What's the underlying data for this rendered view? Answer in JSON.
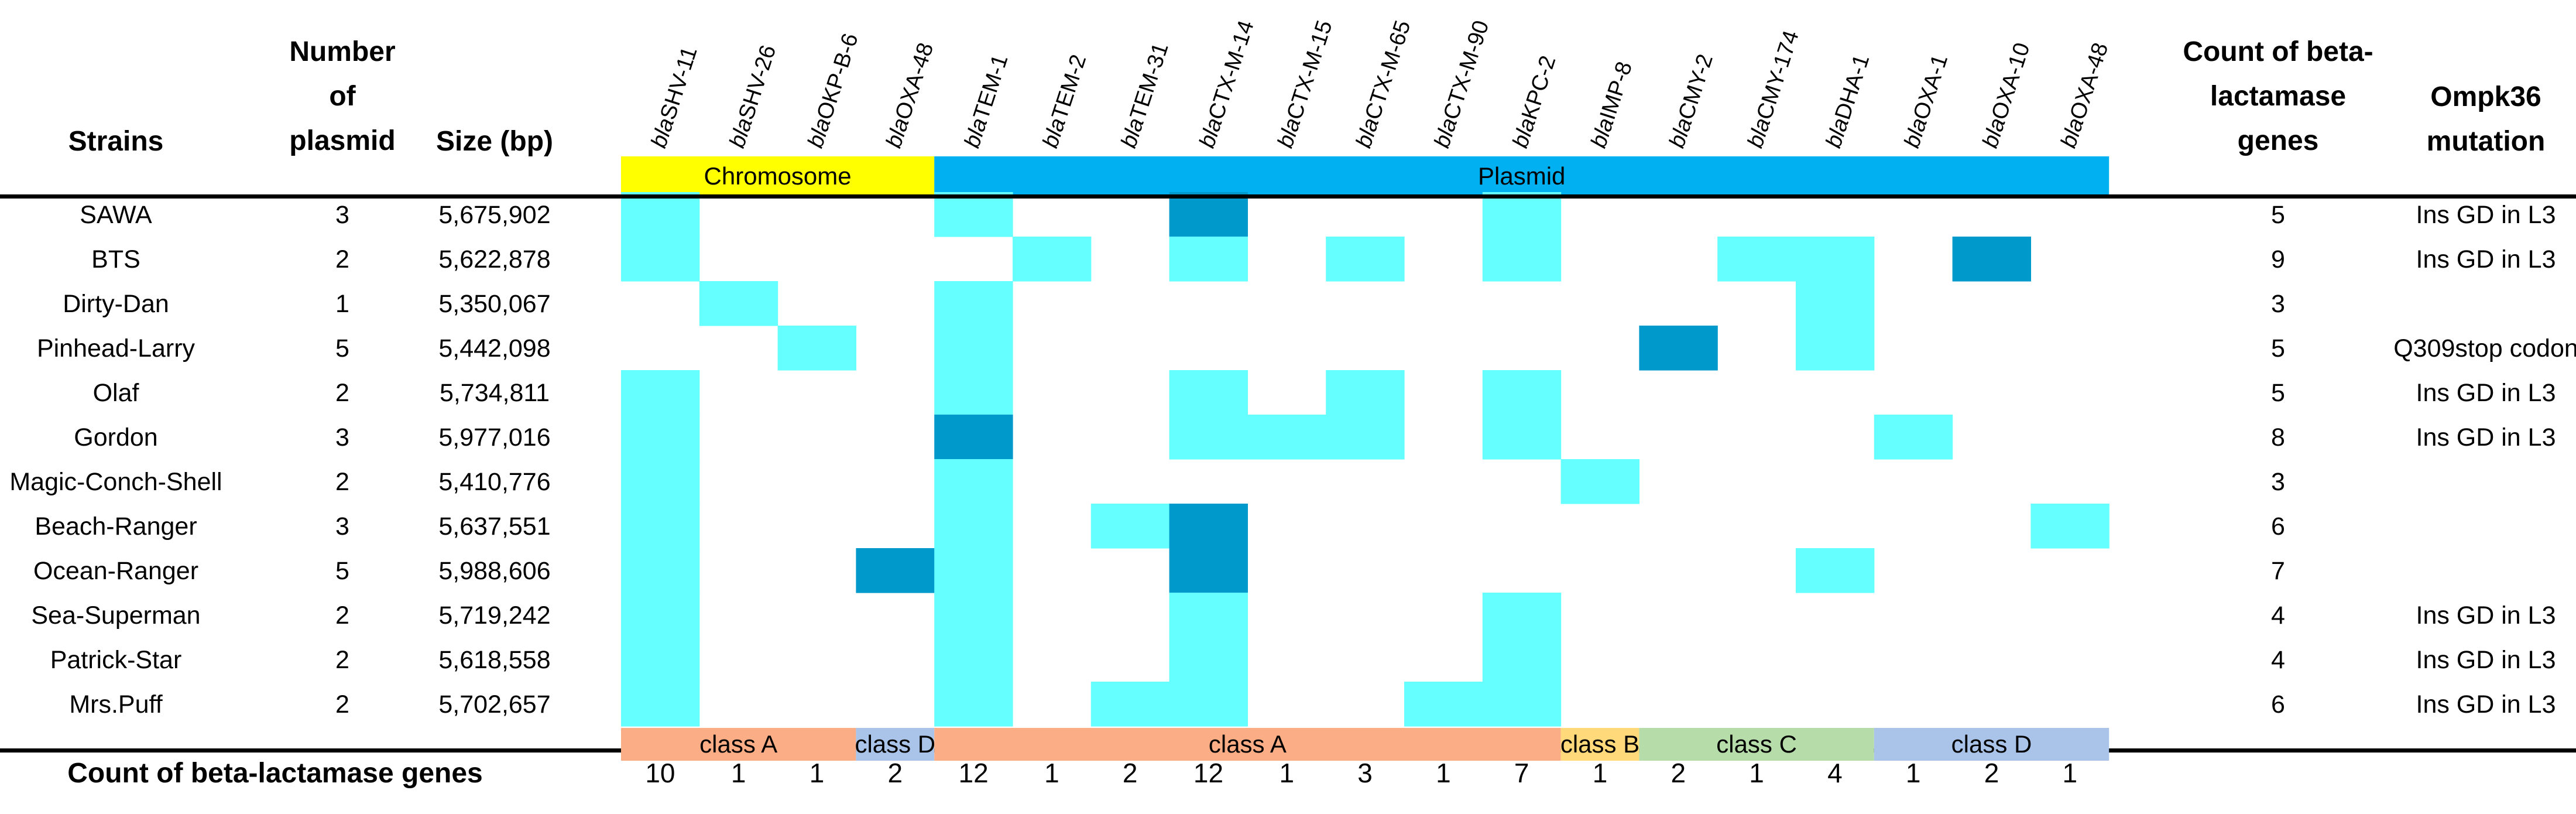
{
  "chart_data": {
    "type": "heatmap",
    "columns": {
      "strains": "Strains",
      "plasmids": [
        "Number",
        "of",
        "plasmid"
      ],
      "size": "Size (bp)",
      "gene_count": [
        "Count of beta-",
        "lactamase",
        "genes"
      ],
      "ompk": [
        "Ompk36",
        "mutation"
      ]
    },
    "genes": [
      "blaSHV-11",
      "blaSHV-26",
      "blaOKP-B-6",
      "blaOXA-48",
      "blaTEM-1",
      "blaTEM-2",
      "blaTEM-31",
      "blaCTX-M-14",
      "blaCTX-M-15",
      "blaCTX-M-65",
      "blaCTX-M-90",
      "blaKPC-2",
      "blaIMP-8",
      "blaCMY-2",
      "blaCMY-174",
      "blaDHA-1",
      "blaOXA-1",
      "blaOXA-10",
      "blaOXA-48"
    ],
    "location_bands": [
      {
        "label": "Chromosome",
        "start": 0,
        "end": 3,
        "color": "#ffff00"
      },
      {
        "label": "Plasmid",
        "start": 4,
        "end": 18,
        "color": "#00b0f0"
      }
    ],
    "class_bands": [
      {
        "label": "class A",
        "start": 0,
        "end": 2,
        "color": "#fbae86"
      },
      {
        "label": "class D",
        "start": 3,
        "end": 3,
        "color": "#a9c4e8"
      },
      {
        "label": "class A",
        "start": 4,
        "end": 11,
        "color": "#fbae86"
      },
      {
        "label": "class B",
        "start": 12,
        "end": 12,
        "color": "#ffd97a"
      },
      {
        "label": "class C",
        "start": 13,
        "end": 15,
        "color": "#b6dcaa"
      },
      {
        "label": "class D",
        "start": 16,
        "end": 18,
        "color": "#a9c4e8"
      }
    ],
    "legend_levels": {
      "0": "#ffffff",
      "1": "#66ffff",
      "2": "#0099cc"
    },
    "strains": [
      {
        "name": "SAWA",
        "plasmids": 3,
        "size": "5,675,902",
        "count": 5,
        "ompk": "Ins GD in L3",
        "values": [
          1,
          0,
          0,
          0,
          1,
          0,
          0,
          2,
          0,
          0,
          0,
          1,
          0,
          0,
          0,
          0,
          0,
          0,
          0
        ]
      },
      {
        "name": "BTS",
        "plasmids": 2,
        "size": "5,622,878",
        "count": 9,
        "ompk": "Ins GD in L3",
        "values": [
          1,
          0,
          0,
          0,
          0,
          1,
          0,
          1,
          0,
          1,
          0,
          1,
          0,
          0,
          1,
          1,
          0,
          2,
          0
        ]
      },
      {
        "name": "Dirty-Dan",
        "plasmids": 1,
        "size": "5,350,067",
        "count": 3,
        "ompk": "",
        "values": [
          0,
          1,
          0,
          0,
          1,
          0,
          0,
          0,
          0,
          0,
          0,
          0,
          0,
          0,
          0,
          1,
          0,
          0,
          0
        ]
      },
      {
        "name": "Pinhead-Larry",
        "plasmids": 5,
        "size": "5,442,098",
        "count": 5,
        "ompk": "Q309stop codon",
        "values": [
          0,
          0,
          1,
          0,
          1,
          0,
          0,
          0,
          0,
          0,
          0,
          0,
          0,
          2,
          0,
          1,
          0,
          0,
          0
        ]
      },
      {
        "name": "Olaf",
        "plasmids": 2,
        "size": "5,734,811",
        "count": 5,
        "ompk": "Ins GD in L3",
        "values": [
          1,
          0,
          0,
          0,
          1,
          0,
          0,
          1,
          0,
          1,
          0,
          1,
          0,
          0,
          0,
          0,
          0,
          0,
          0
        ]
      },
      {
        "name": "Gordon",
        "plasmids": 3,
        "size": "5,977,016",
        "count": 8,
        "ompk": "Ins GD in L3",
        "values": [
          1,
          0,
          0,
          0,
          2,
          0,
          0,
          1,
          1,
          1,
          0,
          1,
          0,
          0,
          0,
          0,
          1,
          0,
          0
        ]
      },
      {
        "name": "Magic-Conch-Shell",
        "plasmids": 2,
        "size": "5,410,776",
        "count": 3,
        "ompk": "",
        "values": [
          1,
          0,
          0,
          0,
          1,
          0,
          0,
          0,
          0,
          0,
          0,
          0,
          1,
          0,
          0,
          0,
          0,
          0,
          0
        ]
      },
      {
        "name": "Beach-Ranger",
        "plasmids": 3,
        "size": "5,637,551",
        "count": 6,
        "ompk": "",
        "values": [
          1,
          0,
          0,
          0,
          1,
          0,
          1,
          2,
          0,
          0,
          0,
          0,
          0,
          0,
          0,
          0,
          0,
          0,
          1
        ]
      },
      {
        "name": "Ocean-Ranger",
        "plasmids": 5,
        "size": "5,988,606",
        "count": 7,
        "ompk": "",
        "values": [
          1,
          0,
          0,
          2,
          1,
          0,
          0,
          2,
          0,
          0,
          0,
          0,
          0,
          0,
          0,
          1,
          0,
          0,
          0
        ]
      },
      {
        "name": "Sea-Superman",
        "plasmids": 2,
        "size": "5,719,242",
        "count": 4,
        "ompk": "Ins GD in L3",
        "values": [
          1,
          0,
          0,
          0,
          1,
          0,
          0,
          1,
          0,
          0,
          0,
          1,
          0,
          0,
          0,
          0,
          0,
          0,
          0
        ]
      },
      {
        "name": "Patrick-Star",
        "plasmids": 2,
        "size": "5,618,558",
        "count": 4,
        "ompk": "Ins GD in L3",
        "values": [
          1,
          0,
          0,
          0,
          1,
          0,
          0,
          1,
          0,
          0,
          0,
          1,
          0,
          0,
          0,
          0,
          0,
          0,
          0
        ]
      },
      {
        "name": "Mrs.Puff",
        "plasmids": 2,
        "size": "5,702,657",
        "count": 6,
        "ompk": "Ins GD in L3",
        "values": [
          1,
          0,
          0,
          0,
          1,
          0,
          1,
          1,
          0,
          0,
          1,
          1,
          0,
          0,
          0,
          0,
          0,
          0,
          0
        ]
      }
    ],
    "totals_label": "Count of beta-lactamase genes",
    "totals": [
      10,
      1,
      1,
      2,
      12,
      1,
      2,
      12,
      1,
      3,
      1,
      7,
      1,
      2,
      1,
      4,
      1,
      2,
      1
    ]
  }
}
